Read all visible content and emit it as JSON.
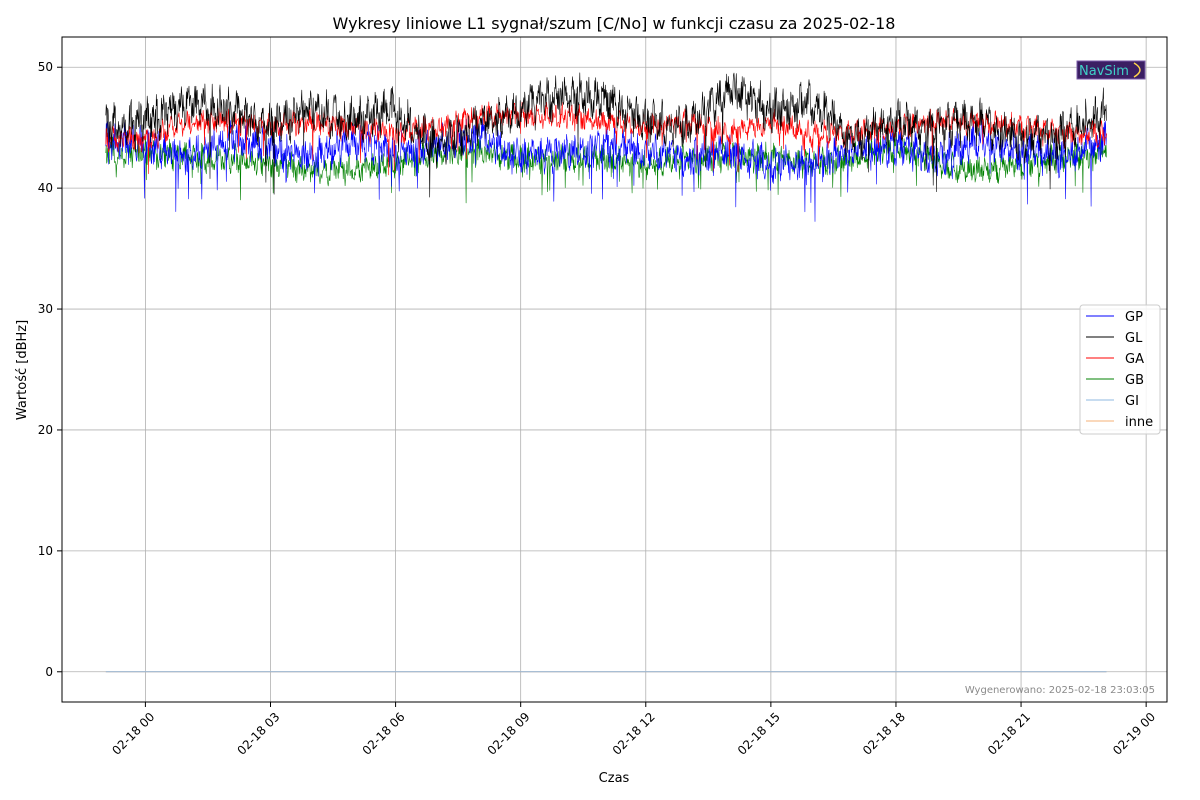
{
  "chart_data": {
    "type": "line",
    "title": "Wykresy liniowe L1 sygnał/szum [C/No] w funkcji czasu za 2025-02-18",
    "xlabel": "Czas",
    "ylabel": "Wartość [dBHz]",
    "x_range": [
      "2025-02-17T22:00",
      "2025-02-19T00:30"
    ],
    "ylim": [
      -2.5,
      52.5
    ],
    "x_ticks": [
      {
        "t": "2025-02-18T00:00",
        "label": "02-18 00"
      },
      {
        "t": "2025-02-18T03:00",
        "label": "02-18 03"
      },
      {
        "t": "2025-02-18T06:00",
        "label": "02-18 06"
      },
      {
        "t": "2025-02-18T09:00",
        "label": "02-18 09"
      },
      {
        "t": "2025-02-18T12:00",
        "label": "02-18 12"
      },
      {
        "t": "2025-02-18T15:00",
        "label": "02-18 15"
      },
      {
        "t": "2025-02-18T18:00",
        "label": "02-18 18"
      },
      {
        "t": "2025-02-18T21:00",
        "label": "02-18 21"
      },
      {
        "t": "2025-02-19T00:00",
        "label": "02-19 00"
      }
    ],
    "y_ticks": [
      0,
      10,
      20,
      30,
      40,
      50
    ],
    "grid": true,
    "legend_position": "center-right",
    "series": [
      {
        "name": "GP",
        "color": "#0000ff",
        "time_start": "2025-02-17T23:03",
        "time_end": "2025-02-18T23:03",
        "x": [
          "2025-02-17T23:03",
          "2025-02-18T00:00",
          "2025-02-18T01:00",
          "2025-02-18T02:00",
          "2025-02-18T03:00",
          "2025-02-18T04:00",
          "2025-02-18T05:00",
          "2025-02-18T06:00",
          "2025-02-18T07:00",
          "2025-02-18T08:00",
          "2025-02-18T09:00",
          "2025-02-18T10:00",
          "2025-02-18T11:00",
          "2025-02-18T12:00",
          "2025-02-18T13:00",
          "2025-02-18T14:00",
          "2025-02-18T15:00",
          "2025-02-18T16:00",
          "2025-02-18T17:00",
          "2025-02-18T18:00",
          "2025-02-18T19:00",
          "2025-02-18T20:00",
          "2025-02-18T21:00",
          "2025-02-18T22:00",
          "2025-02-18T23:03"
        ],
        "values": [
          44.0,
          43.5,
          42.5,
          44.0,
          43.5,
          42.5,
          44.0,
          43.0,
          43.5,
          44.5,
          42.5,
          43.0,
          43.5,
          43.0,
          42.5,
          43.0,
          42.0,
          42.0,
          43.0,
          43.5,
          42.5,
          44.0,
          43.0,
          42.5,
          44.0
        ]
      },
      {
        "name": "GL",
        "color": "#000000",
        "time_start": "2025-02-17T23:03",
        "time_end": "2025-02-18T23:03",
        "x": [
          "2025-02-17T23:03",
          "2025-02-18T00:00",
          "2025-02-18T01:00",
          "2025-02-18T02:00",
          "2025-02-18T03:00",
          "2025-02-18T04:00",
          "2025-02-18T05:00",
          "2025-02-18T06:00",
          "2025-02-18T07:00",
          "2025-02-18T08:00",
          "2025-02-18T09:00",
          "2025-02-18T10:00",
          "2025-02-18T11:00",
          "2025-02-18T12:00",
          "2025-02-18T13:00",
          "2025-02-18T14:00",
          "2025-02-18T15:00",
          "2025-02-18T16:00",
          "2025-02-18T17:00",
          "2025-02-18T18:00",
          "2025-02-18T19:00",
          "2025-02-18T20:00",
          "2025-02-18T21:00",
          "2025-02-18T22:00",
          "2025-02-18T23:03"
        ],
        "values": [
          45.0,
          45.5,
          47.0,
          46.5,
          45.0,
          46.5,
          45.5,
          46.5,
          43.5,
          45.5,
          46.5,
          47.5,
          47.5,
          45.5,
          45.0,
          48.0,
          46.5,
          47.0,
          44.0,
          45.5,
          45.0,
          45.5,
          44.0,
          44.5,
          46.5
        ]
      },
      {
        "name": "GA",
        "color": "#ff0000",
        "time_start": "2025-02-17T23:03",
        "time_end": "2025-02-18T23:03",
        "x": [
          "2025-02-17T23:03",
          "2025-02-18T00:00",
          "2025-02-18T01:00",
          "2025-02-18T02:00",
          "2025-02-18T03:00",
          "2025-02-18T04:00",
          "2025-02-18T05:00",
          "2025-02-18T06:00",
          "2025-02-18T07:00",
          "2025-02-18T08:00",
          "2025-02-18T09:00",
          "2025-02-18T10:00",
          "2025-02-18T11:00",
          "2025-02-18T12:00",
          "2025-02-18T13:00",
          "2025-02-18T14:00",
          "2025-02-18T15:00",
          "2025-02-18T16:00",
          "2025-02-18T17:00",
          "2025-02-18T18:00",
          "2025-02-18T19:00",
          "2025-02-18T20:00",
          "2025-02-18T21:00",
          "2025-02-18T22:00",
          "2025-02-18T23:03"
        ],
        "values": [
          44.0,
          44.0,
          45.5,
          45.5,
          45.0,
          45.5,
          45.0,
          44.5,
          45.0,
          46.0,
          46.0,
          46.0,
          45.5,
          45.0,
          45.5,
          44.5,
          45.5,
          44.5,
          44.5,
          45.0,
          45.5,
          45.5,
          45.0,
          44.5,
          44.5
        ]
      },
      {
        "name": "GB",
        "color": "#008000",
        "time_start": "2025-02-17T23:03",
        "time_end": "2025-02-18T23:03",
        "x": [
          "2025-02-17T23:03",
          "2025-02-18T00:00",
          "2025-02-18T01:00",
          "2025-02-18T02:00",
          "2025-02-18T03:00",
          "2025-02-18T04:00",
          "2025-02-18T05:00",
          "2025-02-18T06:00",
          "2025-02-18T07:00",
          "2025-02-18T08:00",
          "2025-02-18T09:00",
          "2025-02-18T10:00",
          "2025-02-18T11:00",
          "2025-02-18T12:00",
          "2025-02-18T13:00",
          "2025-02-18T14:00",
          "2025-02-18T15:00",
          "2025-02-18T16:00",
          "2025-02-18T17:00",
          "2025-02-18T18:00",
          "2025-02-18T19:00",
          "2025-02-18T20:00",
          "2025-02-18T21:00",
          "2025-02-18T22:00",
          "2025-02-18T23:03"
        ],
        "values": [
          43.0,
          43.0,
          42.5,
          42.5,
          42.0,
          41.5,
          41.5,
          42.0,
          43.0,
          43.0,
          42.5,
          42.5,
          42.5,
          42.0,
          42.5,
          42.5,
          42.5,
          42.0,
          42.5,
          43.5,
          42.0,
          41.5,
          42.0,
          42.5,
          43.0
        ]
      },
      {
        "name": "GI",
        "color": "#8fb8e0",
        "time_start": "2025-02-17T23:03",
        "time_end": "2025-02-18T23:03",
        "x": [
          "2025-02-17T23:03",
          "2025-02-18T23:03"
        ],
        "values": [
          0,
          0
        ]
      },
      {
        "name": "inne",
        "color": "#f5b277",
        "time_start": "2025-02-17T23:03",
        "time_end": "2025-02-18T23:03",
        "x": [
          "2025-02-17T23:03",
          "2025-02-18T23:03"
        ],
        "values": [
          0,
          0
        ]
      }
    ],
    "annotation": "Wygenerowano: 2025-02-18 23:03:05",
    "logo_text": "NavSim"
  }
}
